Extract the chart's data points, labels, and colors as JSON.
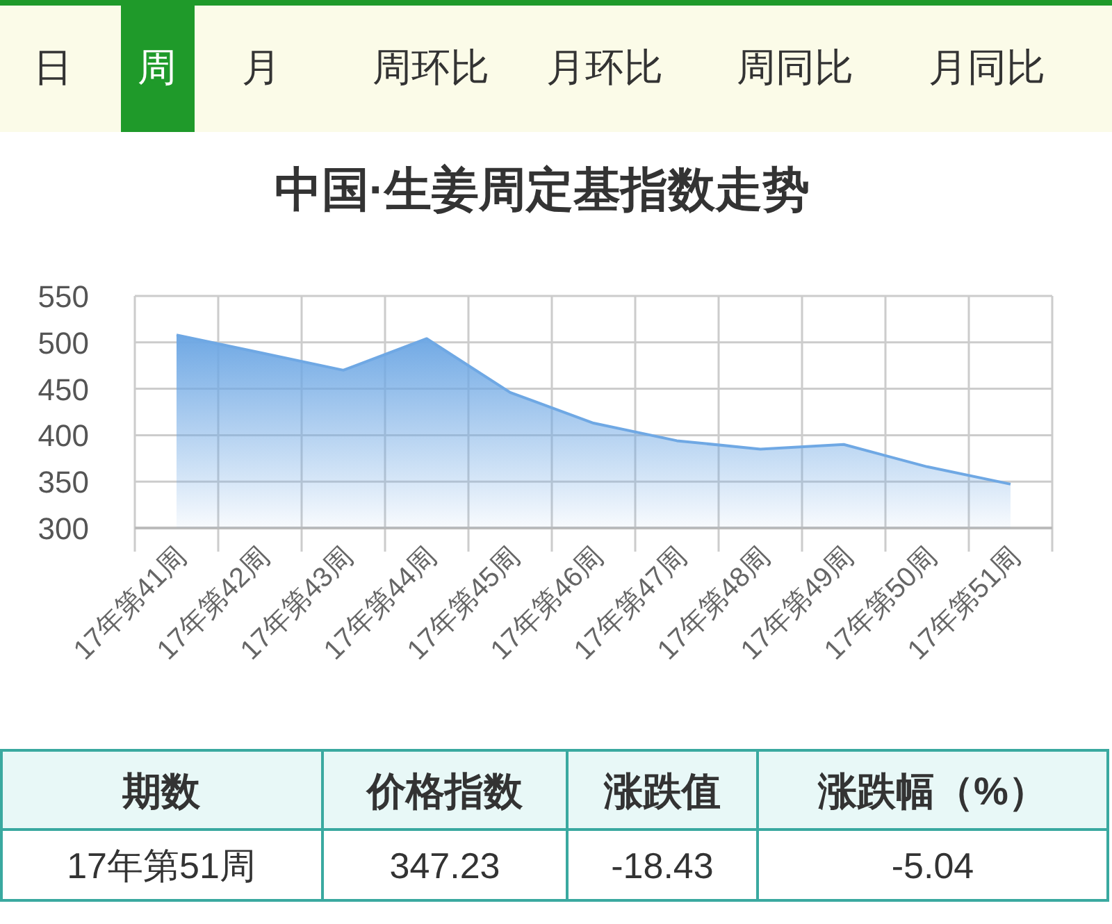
{
  "chart_data": {
    "type": "area",
    "title": "中国·生姜周定基指数走势",
    "categories": [
      "17年第41周",
      "17年第42周",
      "17年第43周",
      "17年第44周",
      "17年第45周",
      "17年第46周",
      "17年第47周",
      "17年第48周",
      "17年第49周",
      "17年第50周",
      "17年第51周"
    ],
    "values": [
      508,
      489,
      470,
      504,
      446,
      413,
      394,
      385,
      390,
      366,
      347.23
    ],
    "color": "#6fa8e4",
    "ylim": [
      300,
      550
    ],
    "yticks": [
      300,
      350,
      400,
      450,
      500,
      550
    ],
    "grid": true,
    "annotations": [
      "日",
      "周",
      "月",
      "周环比",
      "月环比",
      "周同比",
      "月同比",
      "期数",
      "价格指数",
      "涨跌值",
      "涨跌幅（%）",
      "17年第51周",
      "347.23",
      "-18.43",
      "-5.04"
    ]
  }
}
